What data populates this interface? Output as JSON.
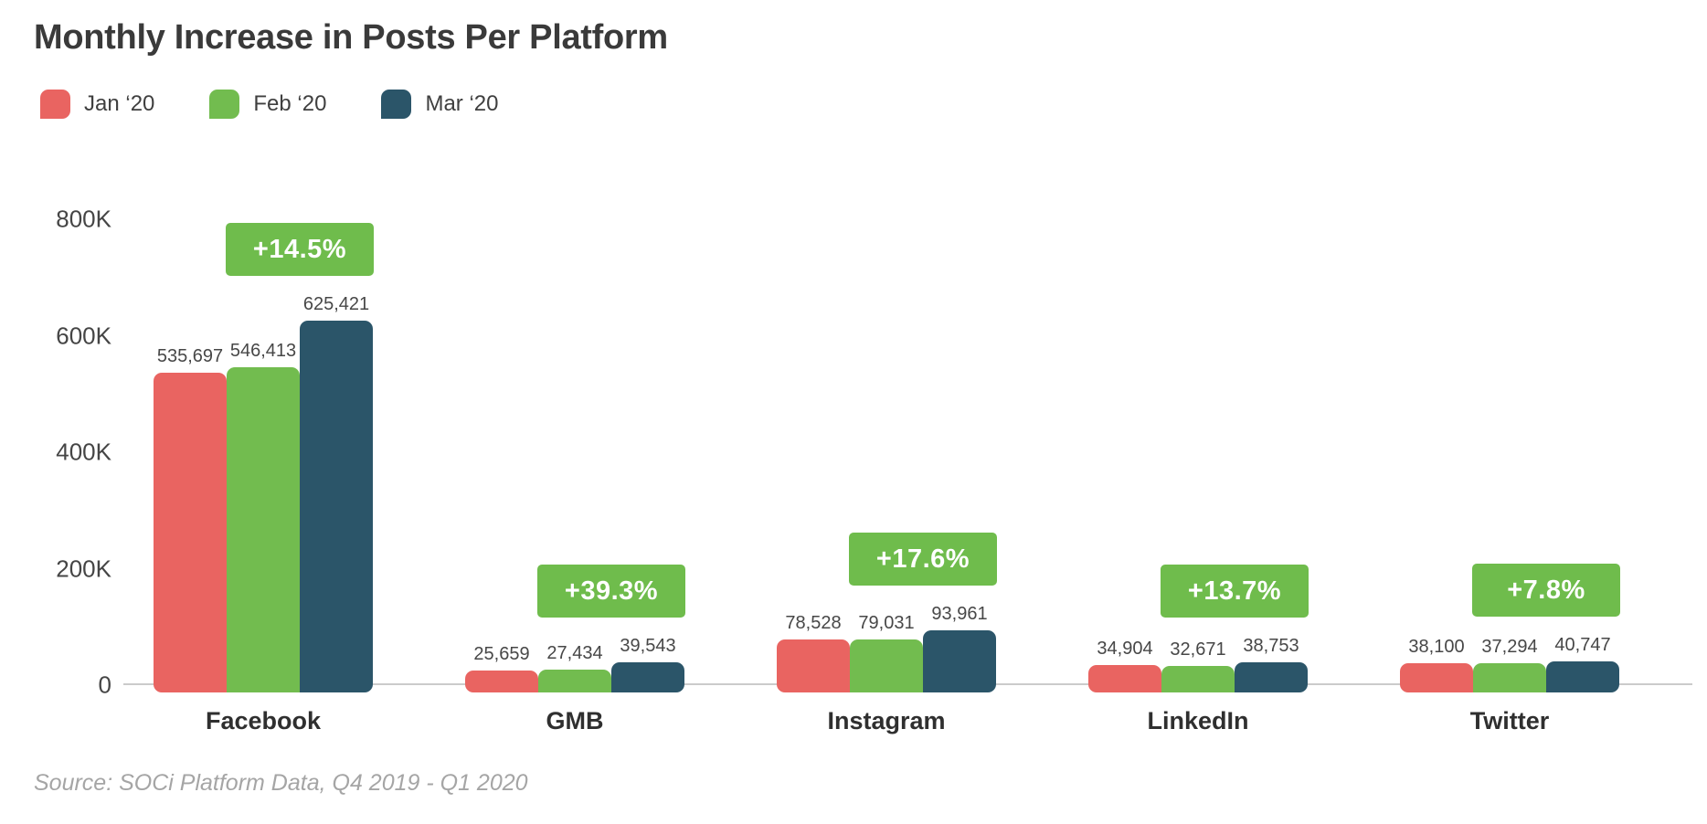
{
  "title": "Monthly Increase in Posts Per Platform",
  "source_note": "Source: SOCi Platform Data, Q4 2019 - Q1 2020",
  "legend": {
    "items": [
      {
        "label": "Jan ‘20",
        "color": "#E96461"
      },
      {
        "label": "Feb ‘20",
        "color": "#72BC4F"
      },
      {
        "label": "Mar ‘20",
        "color": "#2B5569"
      }
    ]
  },
  "chart_data": {
    "type": "bar",
    "title": "Monthly Increase in Posts Per Platform",
    "categories": [
      "Facebook",
      "GMB",
      "Instagram",
      "LinkedIn",
      "Twitter"
    ],
    "series": [
      {
        "name": "Jan ‘20",
        "color": "#E96461",
        "values": [
          535697,
          25659,
          78528,
          34904,
          38100
        ]
      },
      {
        "name": "Feb ‘20",
        "color": "#72BC4F",
        "values": [
          546413,
          27434,
          79031,
          32671,
          37294
        ]
      },
      {
        "name": "Mar ‘20",
        "color": "#2B5569",
        "values": [
          625421,
          39543,
          93961,
          38753,
          40747
        ]
      }
    ],
    "value_labels": [
      [
        "535,697",
        "546,413",
        "625,421"
      ],
      [
        "25,659",
        "27,434",
        "39,543"
      ],
      [
        "78,528",
        "79,031",
        "93,961"
      ],
      [
        "34,904",
        "32,671",
        "38,753"
      ],
      [
        "38,100",
        "37,294",
        "40,747"
      ]
    ],
    "callouts": {
      "color": "#6FBC4C",
      "text_color": "#FFFFFF",
      "labels": [
        "+14.5%",
        "+39.3%",
        "+17.6%",
        "+13.7%",
        "+7.8%"
      ]
    },
    "y_axis": {
      "ticks": [
        "0",
        "200K",
        "400K",
        "600K",
        "800K"
      ],
      "range": [
        0,
        800000
      ]
    },
    "grid": false,
    "legend_position": "top-left"
  }
}
